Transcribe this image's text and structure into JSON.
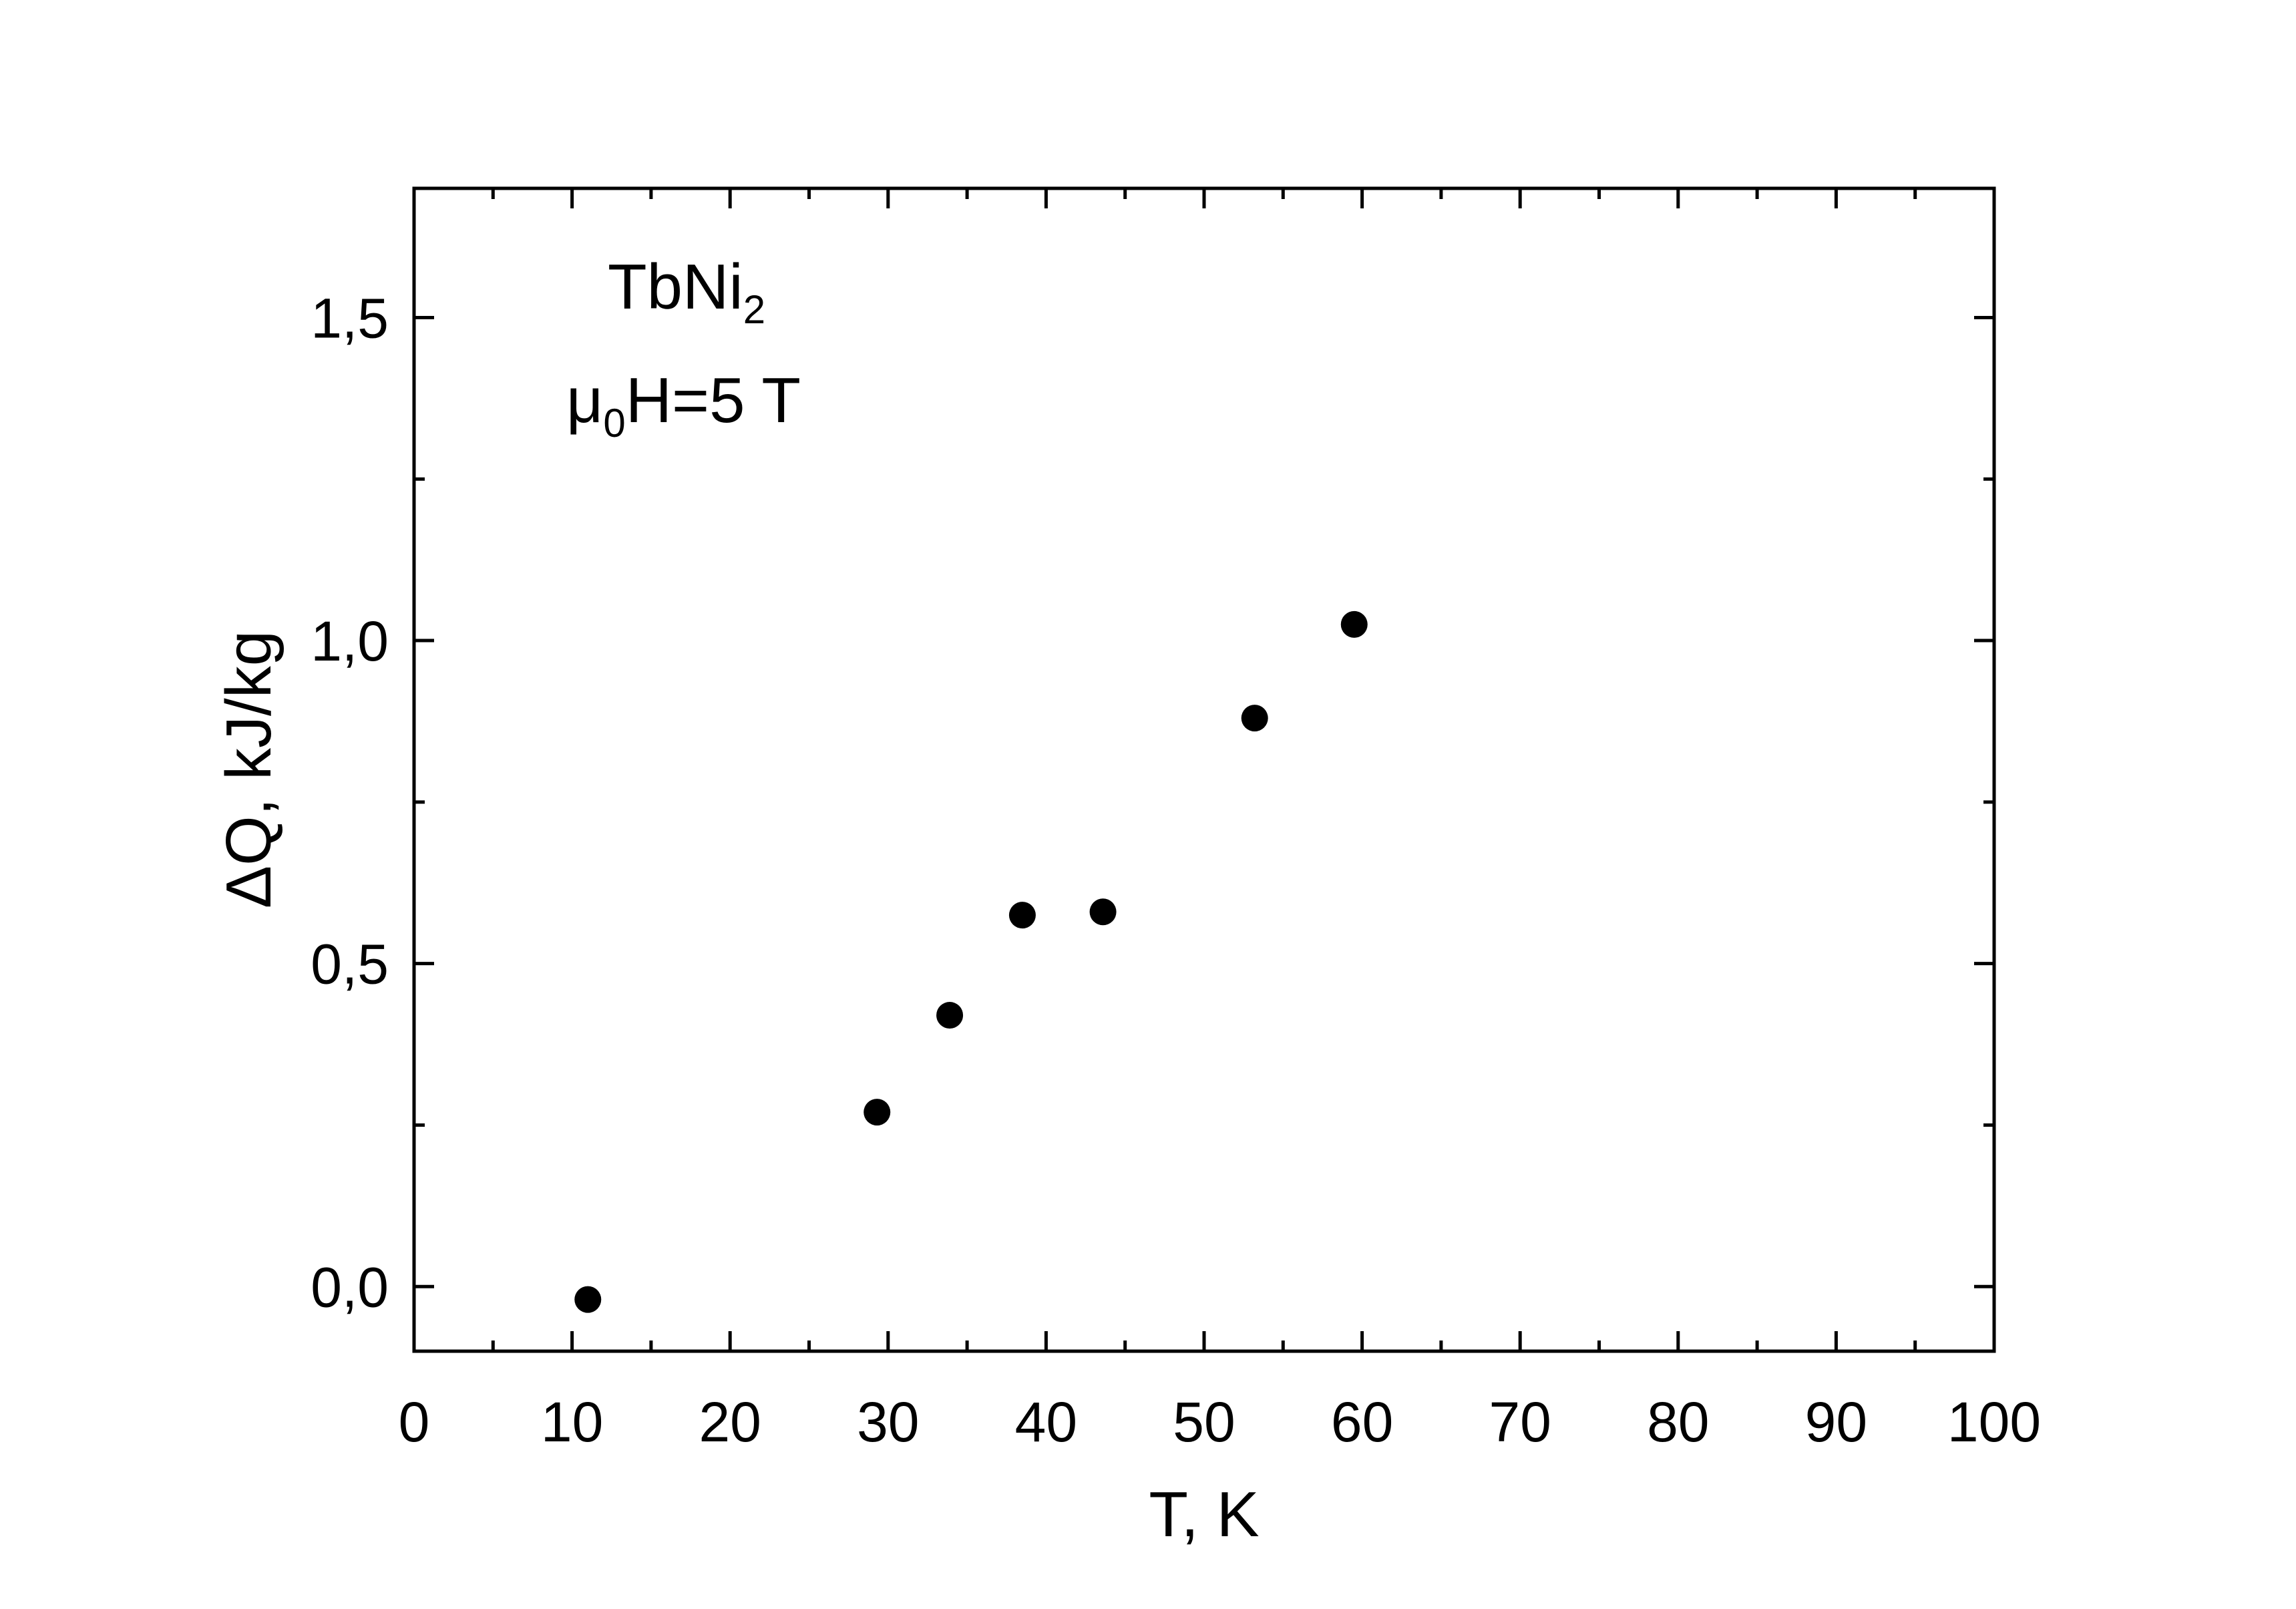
{
  "chart_data": {
    "type": "scatter",
    "title": "",
    "xlabel": "T, K",
    "ylabel": "ΔQ, kJ/kg",
    "xlim": [
      0,
      100
    ],
    "ylim": [
      -0.1,
      1.7
    ],
    "x_ticks": [
      "0",
      "10",
      "20",
      "30",
      "40",
      "50",
      "60",
      "70",
      "80",
      "90",
      "100"
    ],
    "y_ticks": [
      "0,0",
      "0,5",
      "1,0",
      "1,5"
    ],
    "grid": false,
    "legend": "none",
    "marker_color": "#000000",
    "annotations": {
      "compound": {
        "main": "TbNi",
        "sub": "2"
      },
      "field": {
        "pre": "μ",
        "sub": "0",
        "post": "H=5 T"
      }
    },
    "series": [
      {
        "points": [
          {
            "x": 11.0,
            "y": -0.02
          },
          {
            "x": 29.3,
            "y": 0.27
          },
          {
            "x": 33.9,
            "y": 0.42
          },
          {
            "x": 38.5,
            "y": 0.575
          },
          {
            "x": 43.6,
            "y": 0.58
          },
          {
            "x": 53.2,
            "y": 0.88
          },
          {
            "x": 59.5,
            "y": 1.025
          }
        ]
      }
    ]
  }
}
